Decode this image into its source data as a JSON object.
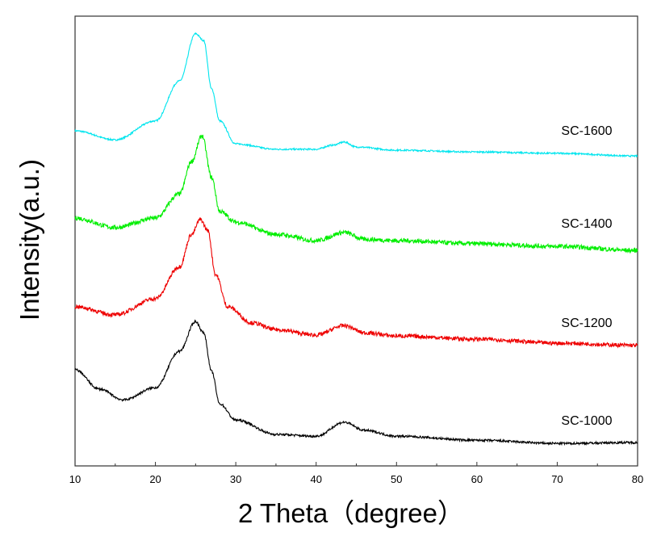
{
  "chart_data": {
    "type": "line",
    "title": "",
    "xlabel": "2 Theta（degree）",
    "ylabel": "Intensity(a.u.)",
    "xlim": [
      10,
      80
    ],
    "ylim": [
      0,
      100
    ],
    "xticks": [
      10,
      20,
      30,
      40,
      50,
      60,
      70,
      80
    ],
    "yticks_shown": false,
    "grid": false,
    "legend": "none (inline labels at right)",
    "series": [
      {
        "name": "SC-1600",
        "color": "#00e5ee",
        "x": [
          10,
          15,
          20,
          23,
          25,
          26,
          27,
          28,
          30,
          35,
          40,
          42,
          43.5,
          45,
          50,
          60,
          70,
          80
        ],
        "y": [
          74.5,
          72.5,
          76.7,
          85.6,
          96.1,
          94.6,
          83.8,
          76.7,
          71.6,
          70.4,
          70.4,
          71.3,
          72.0,
          70.9,
          70.2,
          69.8,
          69.5,
          68.9
        ]
      },
      {
        "name": "SC-1400",
        "color": "#00ee00",
        "x": [
          10,
          15,
          20,
          23,
          24.5,
          25.8,
          27,
          28,
          30,
          35,
          40,
          43.5,
          46,
          50,
          60,
          70,
          80
        ],
        "y": [
          55.1,
          53.0,
          55.1,
          60.5,
          67.7,
          73.4,
          64.1,
          56.6,
          54.2,
          51.5,
          50.1,
          51.9,
          50.4,
          50.1,
          49.4,
          48.8,
          47.9
        ]
      },
      {
        "name": "SC-1200",
        "color": "#ee0000",
        "x": [
          10,
          15,
          20,
          23,
          24.5,
          25.6,
          26.5,
          27.5,
          29,
          32,
          35,
          40,
          43.5,
          46,
          50,
          60,
          70,
          80
        ],
        "y": [
          35.4,
          33.6,
          37.2,
          44.3,
          51.5,
          54.8,
          52.4,
          42.5,
          35.4,
          31.8,
          30.3,
          29.1,
          31.2,
          29.6,
          28.9,
          28.2,
          27.3,
          26.8
        ]
      },
      {
        "name": "SC-1000",
        "color": "#000000",
        "x": [
          10,
          13,
          16,
          20,
          23,
          25,
          26,
          27,
          28,
          30,
          35,
          40,
          43.5,
          46,
          50,
          60,
          70,
          80
        ],
        "y": [
          21.4,
          17.1,
          14.7,
          17.4,
          25.5,
          32.1,
          29.6,
          21.0,
          13.8,
          10.2,
          7.0,
          6.6,
          9.7,
          7.9,
          6.6,
          5.7,
          5.0,
          5.2
        ]
      }
    ],
    "annotations": [
      "SC-1600",
      "SC-1400",
      "SC-1200",
      "SC-1000"
    ]
  }
}
